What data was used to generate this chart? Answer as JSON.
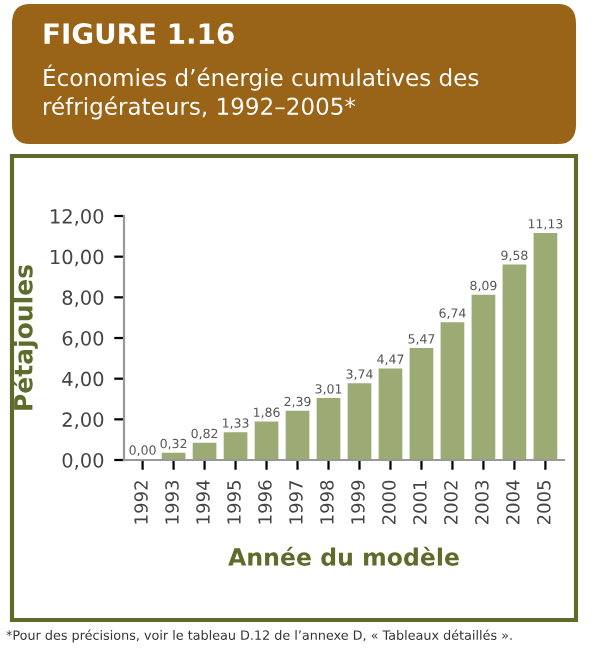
{
  "chart_data": {
    "type": "bar",
    "title": "FIGURE 1.16",
    "subtitle": "Économies d’énergie cumulatives des\nréfrigérateurs, 1992–2005*",
    "xlabel": "Année du modèle",
    "ylabel": "Pétajoules",
    "categories": [
      "1992",
      "1993",
      "1994",
      "1995",
      "1996",
      "1997",
      "1998",
      "1999",
      "2000",
      "2001",
      "2002",
      "2003",
      "2004",
      "2005"
    ],
    "values": [
      0.0,
      0.32,
      0.82,
      1.33,
      1.86,
      2.39,
      3.01,
      3.74,
      4.47,
      5.47,
      6.74,
      8.09,
      9.58,
      11.13
    ],
    "value_labels": [
      "0,00",
      "0,32",
      "0,82",
      "1,33",
      "1,86",
      "2,39",
      "3,01",
      "3,74",
      "4,47",
      "5,47",
      "6,74",
      "8,09",
      "9,58",
      "11,13"
    ],
    "color": "#9caa74",
    "ylim": [
      0,
      12
    ],
    "yticks": [
      {
        "value": 0,
        "label": "0,00"
      },
      {
        "value": 2,
        "label": "2,00"
      },
      {
        "value": 4,
        "label": "4,00"
      },
      {
        "value": 6,
        "label": "6,00"
      },
      {
        "value": 8,
        "label": "8,00"
      },
      {
        "value": 10,
        "label": "10,00"
      },
      {
        "value": 12,
        "label": "12,00"
      }
    ],
    "grid": false,
    "legend": false,
    "annotations": [
      "*Pour des précisions, voir le tableau D.12 de l’annexe D, « Tableaux détaillés »."
    ]
  }
}
